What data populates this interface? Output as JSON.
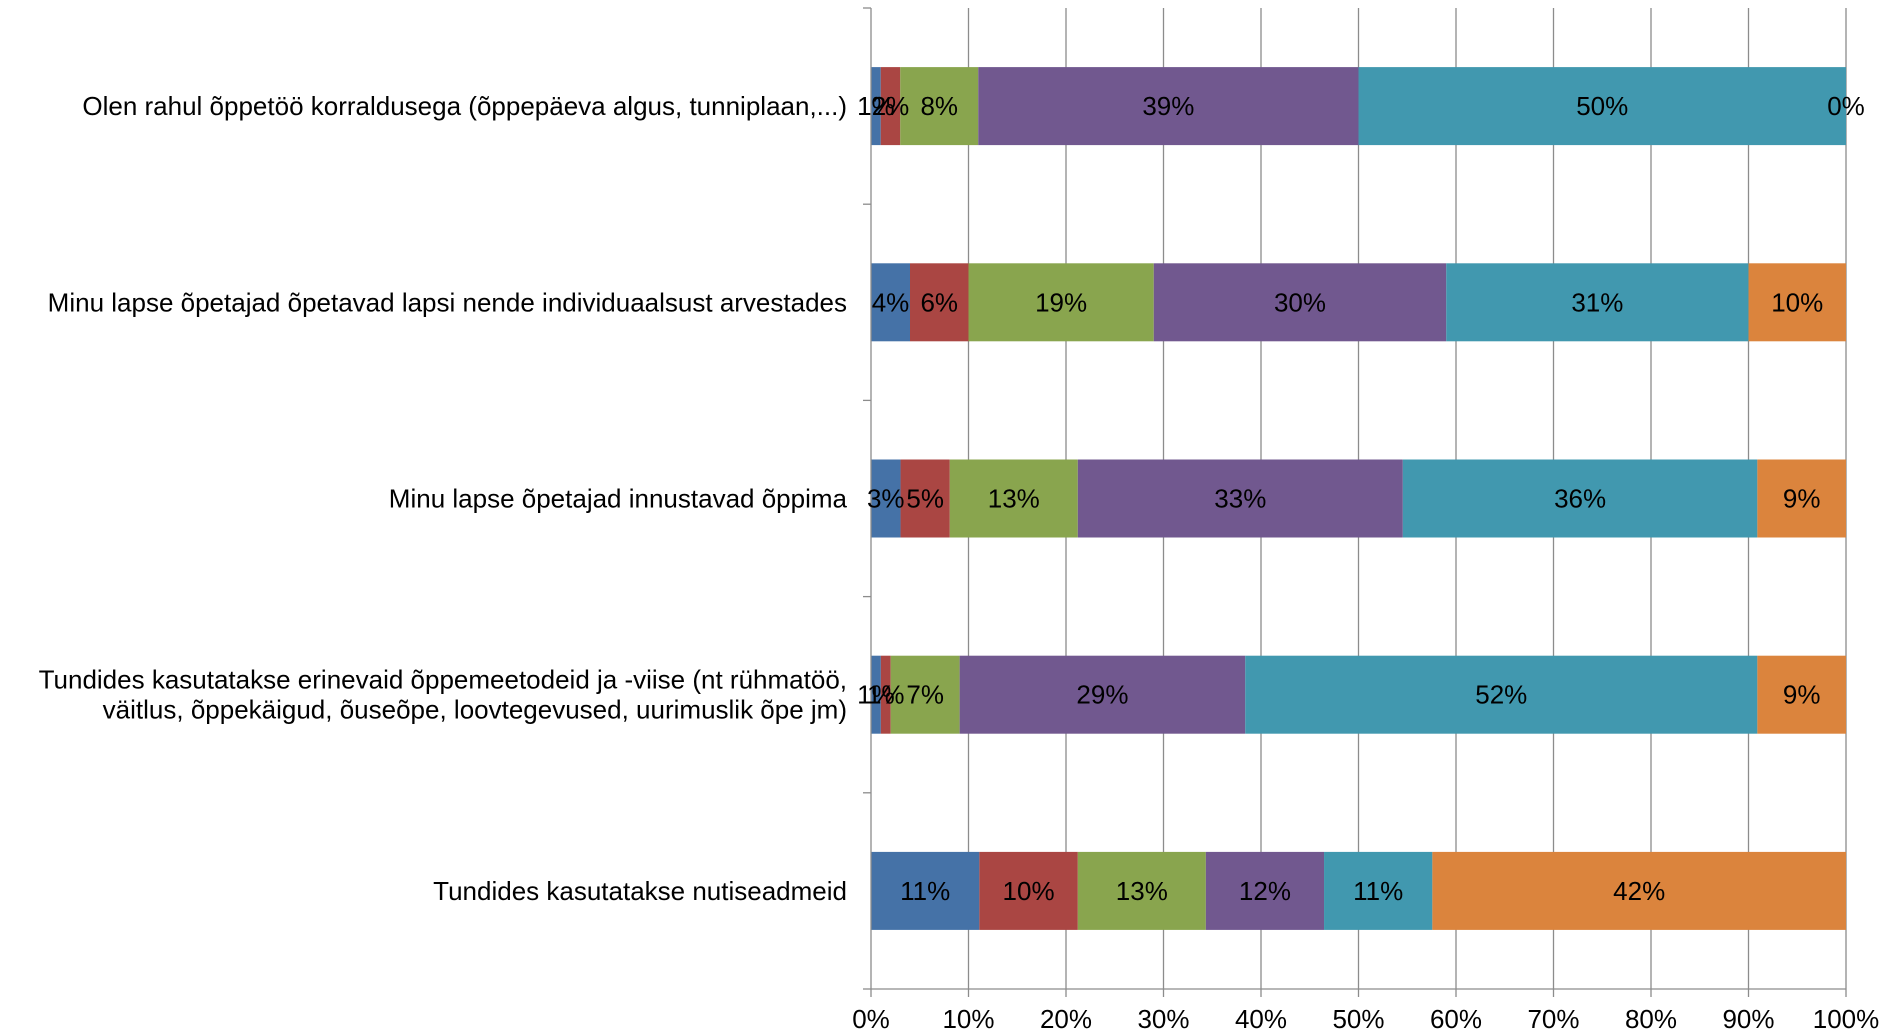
{
  "chart_data": {
    "type": "bar",
    "orientation": "horizontal",
    "stacked": "percent",
    "categories": [
      [
        "Olen rahul õppetöö korraldusega (õppepäeva algus, tunniplaan,...)"
      ],
      [
        "Minu lapse õpetajad õpetavad lapsi nende individuaalsust arvestades"
      ],
      [
        "Minu lapse õpetajad innustavad õppima"
      ],
      [
        "Tundides kasutatakse erinevaid õppemeetodeid ja -viise (nt rühmatöö,",
        "väitlus, õppekäigud, õuseõpe, loovtegevused, uurimuslik õpe jm)"
      ],
      [
        "Tundides kasutatakse nutiseadmeid"
      ]
    ],
    "series": [
      {
        "color": "#4572A7",
        "values": [
          1,
          4,
          3,
          1,
          11
        ],
        "labels": [
          "1%",
          "4%",
          "3%",
          "1%",
          "11%"
        ]
      },
      {
        "color": "#AA4643",
        "values": [
          2,
          6,
          5,
          1,
          10
        ],
        "labels": [
          "2%",
          "6%",
          "5%",
          "1%",
          "10%"
        ]
      },
      {
        "color": "#89A54E",
        "values": [
          8,
          19,
          13,
          7,
          13
        ],
        "labels": [
          "8%",
          "19%",
          "13%",
          "7%",
          "13%"
        ]
      },
      {
        "color": "#71588F",
        "values": [
          39,
          30,
          33,
          29,
          12
        ],
        "labels": [
          "39%",
          "30%",
          "33%",
          "29%",
          "12%"
        ]
      },
      {
        "color": "#4198AF",
        "values": [
          50,
          31,
          36,
          52,
          11
        ],
        "labels": [
          "50%",
          "31%",
          "36%",
          "52%",
          "11%"
        ]
      },
      {
        "color": "#DB843D",
        "values": [
          0,
          10,
          9,
          9,
          42
        ],
        "labels": [
          "0%",
          "10%",
          "9%",
          "9%",
          "42%"
        ]
      }
    ],
    "xlim": [
      0,
      100
    ],
    "xticks": [
      "0%",
      "10%",
      "20%",
      "30%",
      "40%",
      "50%",
      "60%",
      "70%",
      "80%",
      "90%",
      "100%"
    ],
    "grid": "vertical",
    "legend": "none"
  }
}
